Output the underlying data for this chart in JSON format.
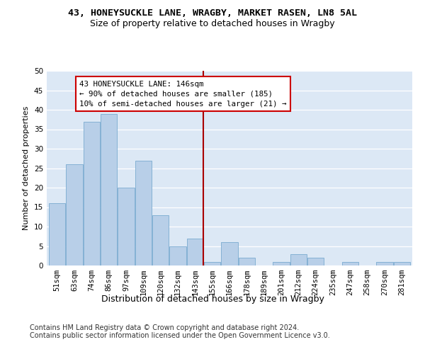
{
  "title1": "43, HONEYSUCKLE LANE, WRAGBY, MARKET RASEN, LN8 5AL",
  "title2": "Size of property relative to detached houses in Wragby",
  "xlabel": "Distribution of detached houses by size in Wragby",
  "ylabel": "Number of detached properties",
  "categories": [
    "51sqm",
    "63sqm",
    "74sqm",
    "86sqm",
    "97sqm",
    "109sqm",
    "120sqm",
    "132sqm",
    "143sqm",
    "155sqm",
    "166sqm",
    "178sqm",
    "189sqm",
    "201sqm",
    "212sqm",
    "224sqm",
    "235sqm",
    "247sqm",
    "258sqm",
    "270sqm",
    "281sqm"
  ],
  "values": [
    16,
    26,
    37,
    39,
    20,
    27,
    13,
    5,
    7,
    1,
    6,
    2,
    0,
    1,
    3,
    2,
    0,
    1,
    0,
    1,
    1
  ],
  "bar_color": "#b8cfe8",
  "bar_edge_color": "#7aaad0",
  "vline_x_idx": 8,
  "vline_color": "#aa0000",
  "annotation_text": "43 HONEYSUCKLE LANE: 146sqm\n← 90% of detached houses are smaller (185)\n10% of semi-detached houses are larger (21) →",
  "annotation_box_color": "#cc0000",
  "ylim": [
    0,
    50
  ],
  "yticks": [
    0,
    5,
    10,
    15,
    20,
    25,
    30,
    35,
    40,
    45,
    50
  ],
  "background_color": "#dce8f5",
  "footer_text": "Contains HM Land Registry data © Crown copyright and database right 2024.\nContains public sector information licensed under the Open Government Licence v3.0.",
  "title1_fontsize": 9.5,
  "title2_fontsize": 9,
  "xlabel_fontsize": 9,
  "ylabel_fontsize": 8,
  "tick_fontsize": 7.5,
  "footer_fontsize": 7
}
